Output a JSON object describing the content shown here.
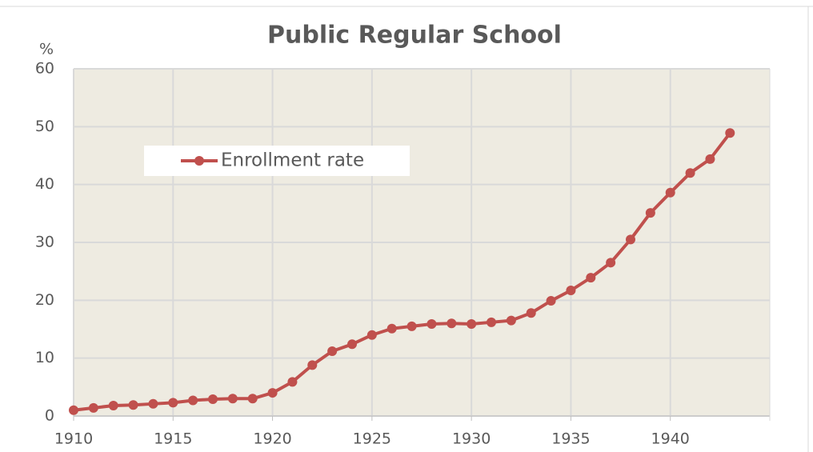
{
  "chart_data": {
    "type": "line",
    "title": "Public Regular School",
    "y_label": "%",
    "x": [
      1910,
      1911,
      1912,
      1913,
      1914,
      1915,
      1916,
      1917,
      1918,
      1919,
      1920,
      1921,
      1922,
      1923,
      1924,
      1925,
      1926,
      1927,
      1928,
      1929,
      1930,
      1931,
      1932,
      1933,
      1934,
      1935,
      1936,
      1937,
      1938,
      1939,
      1940,
      1941,
      1942,
      1943
    ],
    "series": [
      {
        "name": "Enrollment rate",
        "color": "#c0504d",
        "values": [
          1.0,
          1.4,
          1.8,
          1.9,
          2.1,
          2.3,
          2.7,
          2.9,
          3.0,
          3.0,
          4.0,
          5.9,
          8.8,
          11.2,
          12.4,
          14.0,
          15.1,
          15.5,
          15.9,
          16.0,
          15.9,
          16.2,
          16.5,
          17.8,
          19.9,
          21.7,
          23.9,
          26.5,
          30.5,
          35.1,
          38.6,
          42.0,
          44.4,
          48.9
        ]
      }
    ],
    "xlim": [
      1910,
      1945
    ],
    "xticks": [
      1910,
      1915,
      1920,
      1925,
      1930,
      1935,
      1940
    ],
    "ylim": [
      0,
      60
    ],
    "yticks": [
      0,
      10,
      20,
      30,
      40,
      50,
      60
    ],
    "grid": true,
    "legend": "upper left"
  }
}
